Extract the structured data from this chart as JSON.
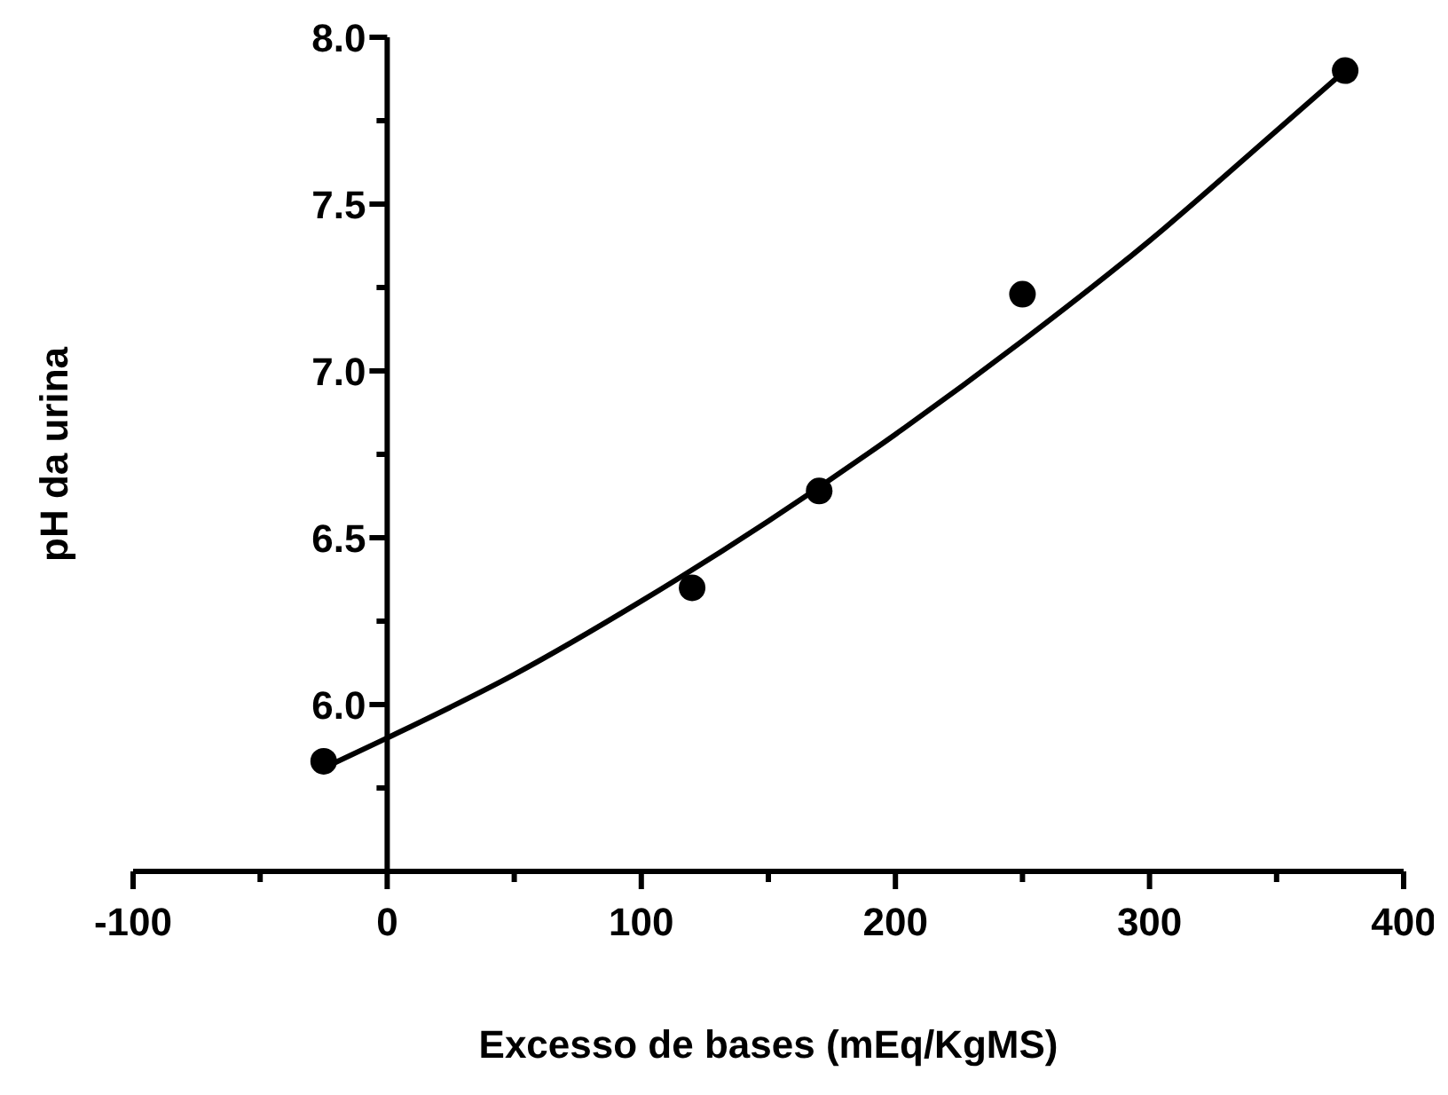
{
  "chart_data": {
    "type": "scatter",
    "xlabel": "Excesso de bases (mEq/KgMS)",
    "ylabel": "pH da urina",
    "xlim": [
      -100,
      400
    ],
    "ylim": [
      5.5,
      8.0
    ],
    "xticks": [
      -100,
      {
        "value": -50,
        "label": null
      },
      0,
      {
        "value": 50,
        "label": null
      },
      100,
      {
        "value": 150,
        "label": null
      },
      200,
      {
        "value": 250,
        "label": null
      },
      300,
      {
        "value": 350,
        "label": null
      },
      400
    ],
    "yticks": [
      {
        "value": 5.75,
        "label": null
      },
      {
        "value": 6,
        "label": "6.0"
      },
      {
        "value": 6.25,
        "label": null
      },
      {
        "value": 6.5,
        "label": "6.5"
      },
      {
        "value": 6.75,
        "label": null
      },
      {
        "value": 7,
        "label": "7.0"
      },
      {
        "value": 7.25,
        "label": null
      },
      {
        "value": 7.5,
        "label": "7.5"
      },
      {
        "value": 7.75,
        "label": null
      },
      {
        "value": 8,
        "label": "8.0"
      }
    ],
    "grid": false,
    "series": [
      {
        "color": "#000000",
        "marker": "circle",
        "x": [
          -25,
          120,
          170,
          250,
          377
        ],
        "values": [
          5.83,
          6.35,
          6.64,
          7.23,
          7.9
        ]
      },
      {
        "type": "line",
        "marker": "none",
        "color": "#000000",
        "x": [
          -25,
          0,
          50,
          100,
          150,
          200,
          250,
          300,
          350,
          377
        ],
        "values": [
          5.81,
          5.9,
          6.09,
          6.31,
          6.55,
          6.81,
          7.09,
          7.39,
          7.72,
          7.9
        ]
      }
    ]
  }
}
